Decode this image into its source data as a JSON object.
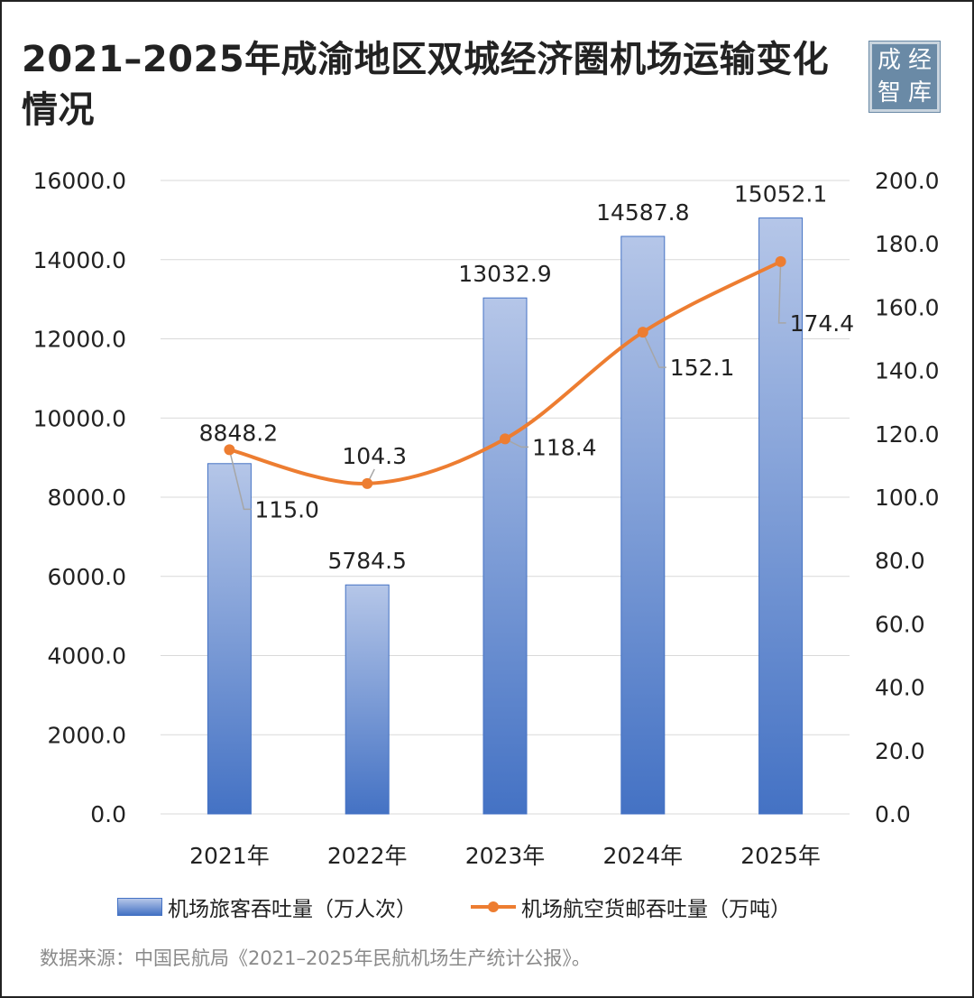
{
  "title": "2021–2025年成渝地区双城经济圈机场运输变化情况",
  "logo": {
    "chars": [
      "成",
      "经",
      "智",
      "库"
    ]
  },
  "colors": {
    "bar_top": "#b5c6e8",
    "bar_bottom": "#4472c4",
    "line": "#ed7d31",
    "grid": "#d9d9d9",
    "leader": "#a6a6a6"
  },
  "chart_data": {
    "type": "bar",
    "categories": [
      "2021年",
      "2022年",
      "2023年",
      "2024年",
      "2025年"
    ],
    "series": [
      {
        "name": "机场旅客吞吐量（万人次）",
        "type": "bar",
        "axis": "left",
        "values": [
          8848.2,
          5784.5,
          13032.9,
          14587.8,
          15052.1
        ],
        "labels": [
          "8848.2",
          "5784.5",
          "13032.9",
          "14587.8",
          "15052.1"
        ]
      },
      {
        "name": "机场航空货邮吞吐量（万吨）",
        "type": "line",
        "axis": "right",
        "values": [
          115.0,
          104.3,
          118.4,
          152.1,
          174.4
        ],
        "labels": [
          "115.0",
          "104.3",
          "118.4",
          "152.1",
          "174.4"
        ]
      }
    ],
    "y_left": {
      "ylim": [
        0,
        16000
      ],
      "ticks": [
        "0.0",
        "2000.0",
        "4000.0",
        "6000.0",
        "8000.0",
        "10000.0",
        "12000.0",
        "14000.0",
        "16000.0"
      ]
    },
    "y_right": {
      "ylim": [
        0,
        200
      ],
      "ticks": [
        "0.0",
        "20.0",
        "40.0",
        "60.0",
        "80.0",
        "100.0",
        "120.0",
        "140.0",
        "160.0",
        "180.0",
        "200.0"
      ]
    },
    "grid": true,
    "legend": "bottom"
  },
  "source": "数据来源：中国民航局《2021–2025年民航机场生产统计公报》。"
}
